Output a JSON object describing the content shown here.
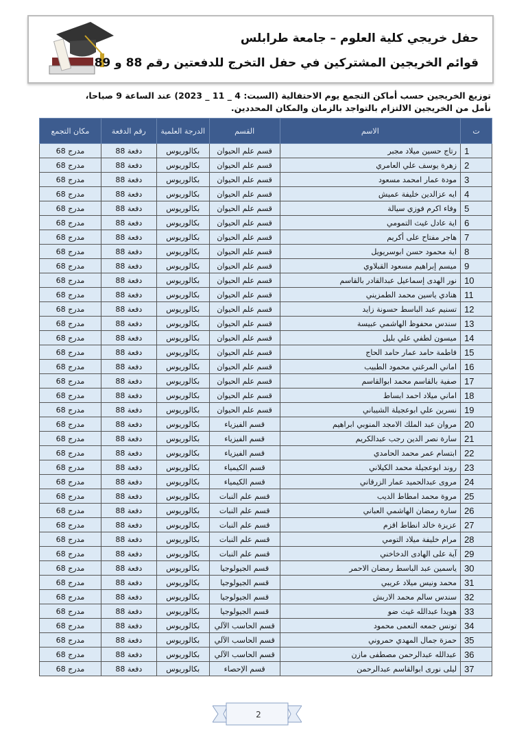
{
  "header": {
    "title": "حفل خريجي كلية العلوم – جامعة طرابلس",
    "subtitle": "قوائم الخريجين المشتركين في حفل التخرج للدفعتين رقم 88 و 89"
  },
  "intro": {
    "line1": "توزيع الخريجين حسب أماكن التجمع يوم الاحتفالية (السبت: 4 _ 11 _ 2023) عند الساعة 9 صباحا،",
    "line2": "نأمل من الخريجين الالتزام بالتواجد بالزمان والمكان المحددين."
  },
  "table": {
    "columns": [
      "ت",
      "الاسم",
      "القسم",
      "الدرجة العلمية",
      "رقم الدفعة",
      "مكان التجمع"
    ],
    "rows": [
      [
        "1",
        "رتاج حسين ميلاد مجبر",
        "قسم علم الحيوان",
        "بكالوريوس",
        "دفعة 88",
        "مدرج 68"
      ],
      [
        "2",
        "زهرة يوسف علي العامري",
        "قسم علم الحيوان",
        "بكالوريوس",
        "دفعة 88",
        "مدرج 68"
      ],
      [
        "3",
        "مودة عمار امحمد مسعود",
        "قسم علم الحيوان",
        "بكالوريوس",
        "دفعة 88",
        "مدرج 68"
      ],
      [
        "4",
        "ايه عزالدين خليفة عميش",
        "قسم علم الحيوان",
        "بكالوريوس",
        "دفعة 88",
        "مدرج 68"
      ],
      [
        "5",
        "وفاء اكرم فوزي سيالة",
        "قسم علم الحيوان",
        "بكالوريوس",
        "دفعة 88",
        "مدرج 68"
      ],
      [
        "6",
        "اية عادل غيث التمومي",
        "قسم علم الحيوان",
        "بكالوريوس",
        "دفعة 88",
        "مدرج 68"
      ],
      [
        "7",
        "هاجر مفتاح على أكريم",
        "قسم علم الحيوان",
        "بكالوريوس",
        "دفعة 88",
        "مدرج 68"
      ],
      [
        "8",
        "اية محمود حسن ابوسريويل",
        "قسم علم الحيوان",
        "بكالوريوس",
        "دفعة 88",
        "مدرج 68"
      ],
      [
        "9",
        "ميسم إبراهيم مسعود القبلاوي",
        "قسم علم الحيوان",
        "بكالوريوس",
        "دفعة 88",
        "مدرج 68"
      ],
      [
        "10",
        "نور الهدى إسماعيل عبدالقادر بالقاسم",
        "قسم علم الحيوان",
        "بكالوريوس",
        "دفعة 88",
        "مدرج 68"
      ],
      [
        "11",
        "هنادي ياسين محمد الطمزيني",
        "قسم علم الحيوان",
        "بكالوريوس",
        "دفعة 88",
        "مدرج 68"
      ],
      [
        "12",
        "تسنيم عبد الباسط حسونة زايد",
        "قسم علم الحيوان",
        "بكالوريوس",
        "دفعة 88",
        "مدرج 68"
      ],
      [
        "13",
        "سندس محفوظ الهاشمي عبيسة",
        "قسم علم الحيوان",
        "بكالوريوس",
        "دفعة 88",
        "مدرج 68"
      ],
      [
        "14",
        "ميسون لطفي علي بليل",
        "قسم علم الحيوان",
        "بكالوريوس",
        "دفعة 88",
        "مدرج 68"
      ],
      [
        "15",
        "فاطمة حامد عمار حامد الحاج",
        "قسم علم الحيوان",
        "بكالوريوس",
        "دفعة 88",
        "مدرج 68"
      ],
      [
        "16",
        "اماني المرغني محمود الطبيب",
        "قسم علم الحيوان",
        "بكالوريوس",
        "دفعة 88",
        "مدرج 68"
      ],
      [
        "17",
        "صفية بالقاسم محمد ابوالقاسم",
        "قسم علم الحيوان",
        "بكالوريوس",
        "دفعة 88",
        "مدرج 68"
      ],
      [
        "18",
        "اماني ميلاد احمد ابساط",
        "قسم علم الحيوان",
        "بكالوريوس",
        "دفعة 88",
        "مدرج 68"
      ],
      [
        "19",
        "نسرين علي ابوعجيلة الشيباني",
        "قسم علم الحيوان",
        "بكالوريوس",
        "دفعة 88",
        "مدرج 68"
      ],
      [
        "20",
        "مروان عبد الملك الامجد المنوبي ابراهيم",
        "قسم الفيزياء",
        "بكالوريوس",
        "دفعة 88",
        "مدرج 68"
      ],
      [
        "21",
        "سارة نصر الدين رجب عبدالكريم",
        "قسم الفيزياء",
        "بكالوريوس",
        "دفعة 88",
        "مدرج 68"
      ],
      [
        "22",
        "ابتسام عمر محمد الحامدي",
        "قسم الفيزياء",
        "بكالوريوس",
        "دفعة 88",
        "مدرج 68"
      ],
      [
        "23",
        "روند ابوعجيلة محمد الكيلاني",
        "قسم الكيمياء",
        "بكالوريوس",
        "دفعة 88",
        "مدرج 68"
      ],
      [
        "24",
        "مروى عبدالحميد عمار الزرقاني",
        "قسم الكيمياء",
        "بكالوريوس",
        "دفعة 88",
        "مدرج 68"
      ],
      [
        "25",
        "مروة محمد امطاط الديب",
        "قسم علم النبات",
        "بكالوريوس",
        "دفعة 88",
        "مدرج 68"
      ],
      [
        "26",
        "سارة رمضان الهاشمي العباني",
        "قسم علم النبات",
        "بكالوريوس",
        "دفعة 88",
        "مدرج 68"
      ],
      [
        "27",
        "عزيزة خالد انطاط اقزم",
        "قسم علم النبات",
        "بكالوريوس",
        "دفعة 88",
        "مدرج 68"
      ],
      [
        "28",
        "مرام خليفة ميلاد التومي",
        "قسم علم النبات",
        "بكالوريوس",
        "دفعة 88",
        "مدرج 68"
      ],
      [
        "29",
        "آية على الهادى الدخاخني",
        "قسم علم النبات",
        "بكالوريوس",
        "دفعة 88",
        "مدرج 68"
      ],
      [
        "30",
        "ياسمين عبد الباسط رمضان الاحمر",
        "قسم الجيولوجيا",
        "بكالوريوس",
        "دفعة 88",
        "مدرج 68"
      ],
      [
        "31",
        "محمد ونيس ميلاد عريبي",
        "قسم الجيولوجيا",
        "بكالوريوس",
        "دفعة 88",
        "مدرج 68"
      ],
      [
        "32",
        "سندس سالم محمد الاربش",
        "قسم الجيولوجيا",
        "بكالوريوس",
        "دفعة 88",
        "مدرج 68"
      ],
      [
        "33",
        "هويدا عبدالله غيث ضو",
        "قسم الجيولوجيا",
        "بكالوريوس",
        "دفعة 88",
        "مدرج 68"
      ],
      [
        "34",
        "تونس جمعه النعمى محمود",
        "قسم الحاسب الآلي",
        "بكالوريوس",
        "دفعة 88",
        "مدرج 68"
      ],
      [
        "35",
        "حمزة جمال المهدي حمروني",
        "قسم الحاسب الآلي",
        "بكالوريوس",
        "دفعة 88",
        "مدرج 68"
      ],
      [
        "36",
        "عبدالله عبدالرحمن مصطفى مازن",
        "قسم الحاسب الآلي",
        "بكالوريوس",
        "دفعة 88",
        "مدرج 68"
      ],
      [
        "37",
        "ليلى نورى ابوالقاسم عبدالرحمن",
        "قسم الإحصاء",
        "بكالوريوس",
        "دفعة 88",
        "مدرج 68"
      ]
    ]
  },
  "footer": {
    "page_number": "2"
  },
  "colors": {
    "header_bg": "#3d5c8f",
    "row_bg": "#dce9f5"
  }
}
